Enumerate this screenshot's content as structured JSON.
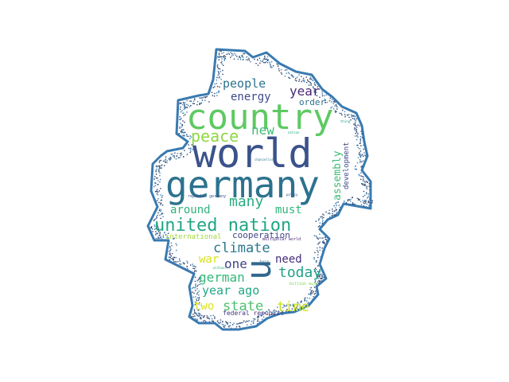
{
  "outline_color": "#3a7ab0",
  "words": [
    {
      "text": "world",
      "color": "#3b528b",
      "rot": 0
    },
    {
      "text": "germany",
      "color": "#2c728e",
      "rot": 0
    },
    {
      "text": "country",
      "color": "#5ec962",
      "rot": 0
    },
    {
      "text": "u",
      "color": "#31688e",
      "rot": 90
    },
    {
      "text": "united nation",
      "color": "#21a685",
      "rot": 0
    },
    {
      "text": "peace",
      "color": "#8fd744",
      "rot": 0
    },
    {
      "text": "many",
      "color": "#28ae80",
      "rot": 0
    },
    {
      "text": "new",
      "color": "#3dbc74",
      "rot": 0
    },
    {
      "text": "climate",
      "color": "#2a788e",
      "rot": 0
    },
    {
      "text": "today",
      "color": "#20a386",
      "rot": 0
    },
    {
      "text": "state",
      "color": "#4ac16d",
      "rot": 0
    },
    {
      "text": "time",
      "color": "#c8e020",
      "rot": 0
    },
    {
      "text": "german",
      "color": "#35b779",
      "rot": 0
    },
    {
      "text": "one",
      "color": "#414487",
      "rot": 0
    },
    {
      "text": "year ago",
      "color": "#22a884",
      "rot": 0
    },
    {
      "text": "people",
      "color": "#2c728e",
      "rot": 0
    },
    {
      "text": "energy",
      "color": "#3e4a89",
      "rot": 0
    },
    {
      "text": "year",
      "color": "#482878",
      "rot": 0
    },
    {
      "text": "around",
      "color": "#2fb47c",
      "rot": 0
    },
    {
      "text": "must",
      "color": "#32b67a",
      "rot": 0
    },
    {
      "text": "need",
      "color": "#472d7b",
      "rot": 0
    },
    {
      "text": "war",
      "color": "#d8e219",
      "rot": 0
    },
    {
      "text": "two",
      "color": "#dde318",
      "rot": 0
    },
    {
      "text": "assembly",
      "color": "#3dbc74",
      "rot": 90
    },
    {
      "text": "cooperation",
      "color": "#3f4788",
      "rot": 0
    },
    {
      "text": "order",
      "color": "#2d708e",
      "rot": 0
    },
    {
      "text": "development",
      "color": "#3e4a89",
      "rot": 90
    },
    {
      "text": "international",
      "color": "#a0da39",
      "rot": 0
    },
    {
      "text": "federal republic",
      "color": "#46337f",
      "rot": 0
    },
    {
      "text": "multipolar world",
      "color": "#482475",
      "rot": 0
    },
    {
      "text": "republic germany",
      "color": "#3b528b",
      "rot": 0
    },
    {
      "text": "billion euro",
      "color": "#7ad151",
      "rot": 0
    },
    {
      "text": "chancellor",
      "color": "#2a788e",
      "rot": 0
    },
    {
      "text": "nation",
      "color": "#27ad81",
      "rot": 0
    },
    {
      "text": "policy",
      "color": "#3b528b",
      "rot": 0
    },
    {
      "text": "without",
      "color": "#35b779",
      "rot": 0
    },
    {
      "text": "force",
      "color": "#31688e",
      "rot": 0
    },
    {
      "text": "thing",
      "color": "#1fa088",
      "rot": 0
    }
  ]
}
